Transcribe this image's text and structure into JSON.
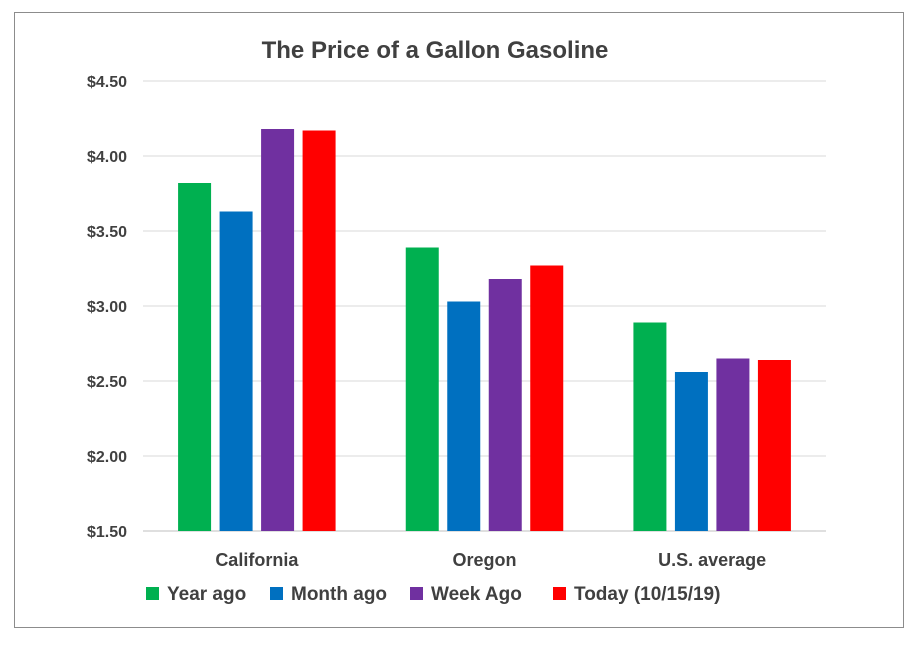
{
  "chart_data": {
    "type": "bar",
    "title": "The Price of a Gallon Gasoline",
    "categories": [
      "California",
      "Oregon",
      "U.S. average"
    ],
    "series": [
      {
        "name": "Year ago",
        "color": "#00b050",
        "values": [
          3.82,
          3.39,
          2.89
        ]
      },
      {
        "name": "Month ago",
        "color": "#0070c0",
        "values": [
          3.63,
          3.03,
          2.56
        ]
      },
      {
        "name": "Week Ago",
        "color": "#7030a0",
        "values": [
          4.18,
          3.18,
          2.65
        ]
      },
      {
        "name": "Today (10/15/19)",
        "color": "#ff0000",
        "values": [
          4.17,
          3.27,
          2.64
        ]
      }
    ],
    "ylim": [
      1.5,
      4.5
    ],
    "yticks": [
      1.5,
      2.0,
      2.5,
      3.0,
      3.5,
      4.0,
      4.5
    ],
    "ytick_labels": [
      "$1.50",
      "$2.00",
      "$2.50",
      "$3.00",
      "$3.50",
      "$4.00",
      "$4.50"
    ],
    "grid": true,
    "legend_position": "bottom"
  }
}
